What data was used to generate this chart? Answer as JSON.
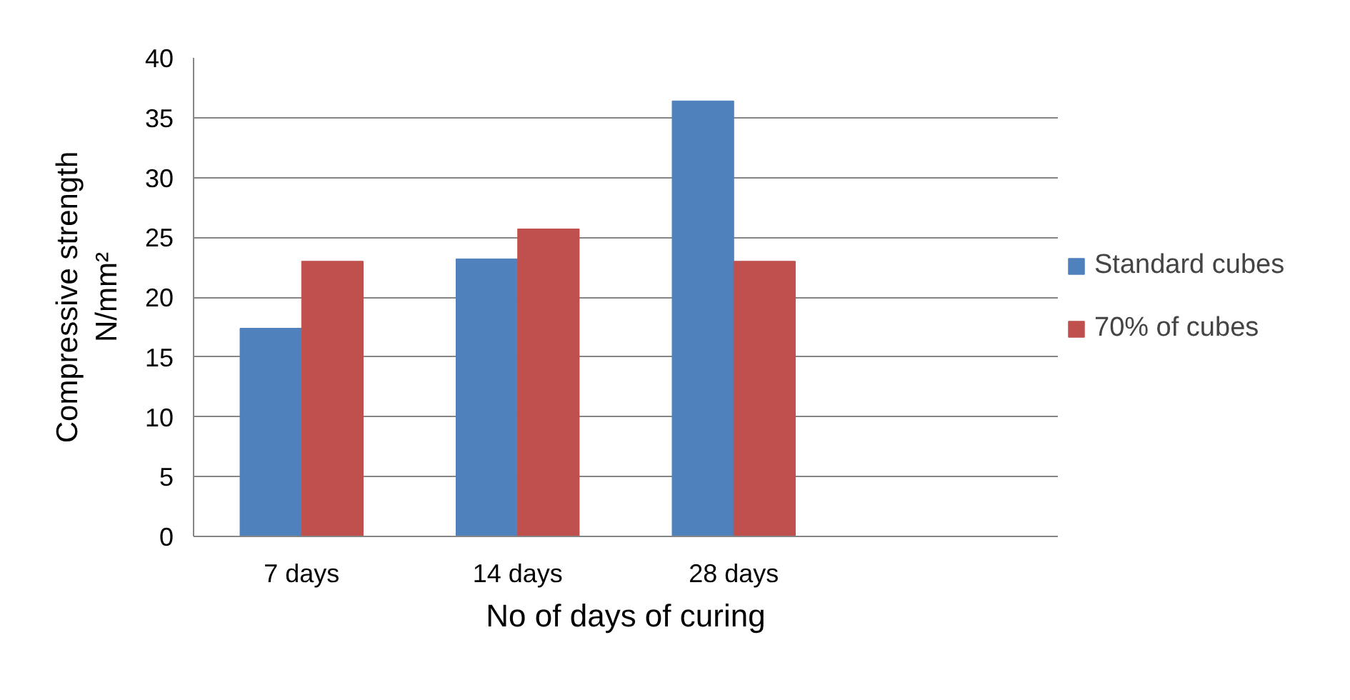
{
  "chart_data": {
    "type": "bar",
    "xlabel": "No of days of curing",
    "ylabel": "Compressive strength\nN/mm²",
    "categories": [
      "7 days",
      "14 days",
      "28 days",
      null
    ],
    "series": [
      {
        "name": "Standard cubes",
        "color": "#4f81bd",
        "values": [
          17.4,
          23.2,
          36.4,
          null
        ]
      },
      {
        "name": "70% of cubes",
        "color": "#c0504d",
        "values": [
          23.0,
          25.7,
          23.0,
          null
        ]
      }
    ],
    "ylim": [
      0,
      40
    ],
    "yticks": [
      0,
      5,
      10,
      15,
      20,
      25,
      30,
      35,
      40
    ],
    "grid": "y",
    "legend": "right"
  }
}
